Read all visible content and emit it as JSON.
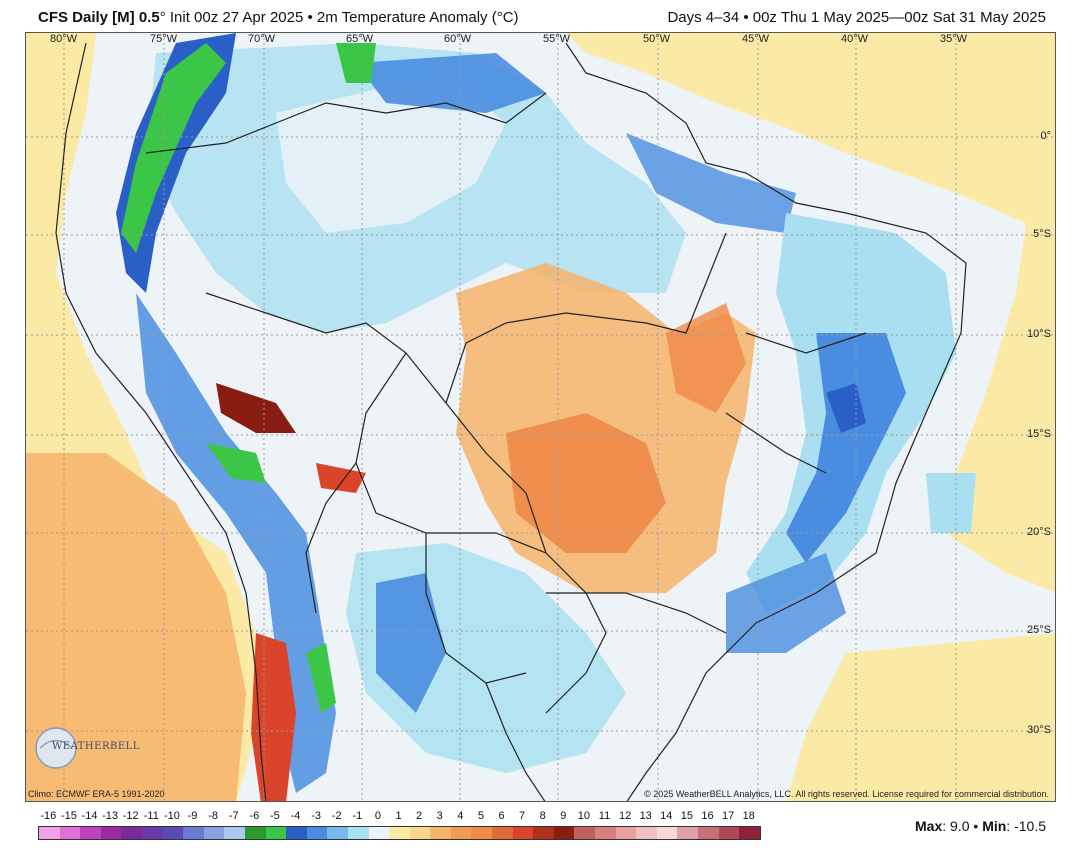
{
  "header": {
    "model": "CFS Daily [M] 0.5",
    "degree": "°",
    "init": "Init 00z 27 Apr 2025",
    "separator": "•",
    "field": "2m Temperature Anomaly (°C)",
    "valid": "Days 4–34 • 00z Thu 1 May 2025—00z Sat 31 May 2025"
  },
  "map": {
    "longitude_labels": [
      "80°W",
      "75°W",
      "70°W",
      "65°W",
      "60°W",
      "55°W",
      "50°W",
      "45°W",
      "40°W",
      "35°W"
    ],
    "latitude_labels": [
      "0°",
      "5°S",
      "10°S",
      "15°S",
      "20°S",
      "25°S",
      "30°S"
    ],
    "climo": "Climo: ECMWF ERA-5 1991-2020",
    "copyright": "© 2025 WeatherBELL Analytics, LLC. All rights reserved. License required for commercial distribution.",
    "logo": "WEATHERBELL",
    "colors": {
      "ocean_warm": "#fbeaa6",
      "neutral": "#eef3f7",
      "cool": "#a9dff0",
      "cooler": "#4a8de0",
      "coolest": "#2a5fc8",
      "green": "#3cc648",
      "warm": "#f6b36a",
      "warmer": "#f08a48",
      "hot": "#d9442a",
      "hottest": "#8a1d12",
      "border": "#222222"
    }
  },
  "colorbar": {
    "labels": [
      "-16",
      "-15",
      "-14",
      "-13",
      "-12",
      "-11",
      "-10",
      "-9",
      "-8",
      "-7",
      "-6",
      "-5",
      "-4",
      "-3",
      "-2",
      "-1",
      "0",
      "1",
      "2",
      "3",
      "4",
      "5",
      "6",
      "7",
      "8",
      "9",
      "10",
      "11",
      "12",
      "13",
      "14",
      "15",
      "16",
      "17",
      "18"
    ],
    "colors": [
      "#f2a0e8",
      "#e070d8",
      "#c040c0",
      "#9a2aa0",
      "#7a2a9a",
      "#6a3aa8",
      "#5a4ab8",
      "#6a7ad0",
      "#8aa0e0",
      "#aac8f0",
      "#2a9a30",
      "#3cc648",
      "#2a5fc8",
      "#4a8de0",
      "#7ab8ec",
      "#a9dff0",
      "#eef3f7",
      "#fbeaa6",
      "#f8d68a",
      "#f6b36a",
      "#f09a52",
      "#f08a48",
      "#e06a38",
      "#d9442a",
      "#b03020",
      "#8a1d12",
      "#c06060",
      "#d88080",
      "#e8a0a0",
      "#f0c0c0",
      "#f8d8d8",
      "#e0a0a8",
      "#c87078",
      "#b04858",
      "#902038"
    ]
  },
  "stats": {
    "max_label": "Max",
    "max_value": "9.0",
    "min_label": "Min",
    "min_value": "-10.5",
    "bullet": "•"
  }
}
